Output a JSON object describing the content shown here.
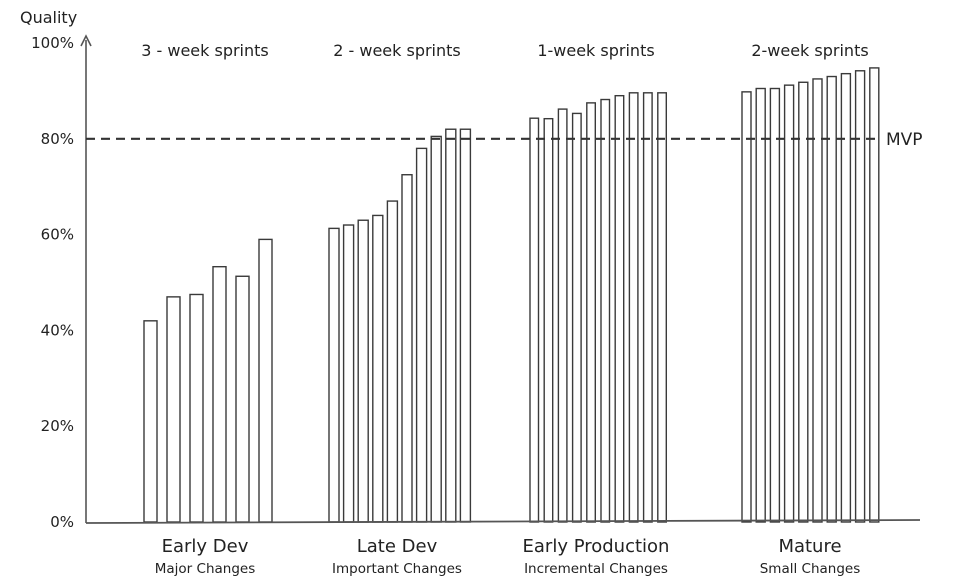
{
  "chart_data": {
    "type": "bar",
    "ylabel": "Quality",
    "ylim": [
      0,
      100
    ],
    "yticks": [
      "0%",
      "20%",
      "40%",
      "60%",
      "80%",
      "100%"
    ],
    "reference_line": {
      "label": "MVP",
      "value": 80
    },
    "groups": [
      {
        "name": "Early Dev",
        "subtitle": "Major Changes",
        "sprint_label": "3 - week sprints",
        "values": [
          42,
          47,
          47.5,
          53.3,
          51.3,
          59
        ]
      },
      {
        "name": "Late Dev",
        "subtitle": "Important Changes",
        "sprint_label": "2 - week sprints",
        "values": [
          61.3,
          62,
          63,
          64,
          67,
          72.5,
          78,
          80.5,
          82,
          82
        ]
      },
      {
        "name": "Early Production",
        "subtitle": "Incremental Changes",
        "sprint_label": "1-week sprints",
        "values": [
          84.3,
          84.2,
          86.2,
          85.3,
          87.5,
          88.2,
          89,
          89.6,
          89.6,
          89.6
        ]
      },
      {
        "name": "Mature",
        "subtitle": "Small Changes",
        "sprint_label": "2-week sprints",
        "values": [
          89.8,
          90.5,
          90.5,
          91.2,
          91.8,
          92.5,
          93,
          93.6,
          94.2,
          94.8
        ]
      }
    ]
  }
}
